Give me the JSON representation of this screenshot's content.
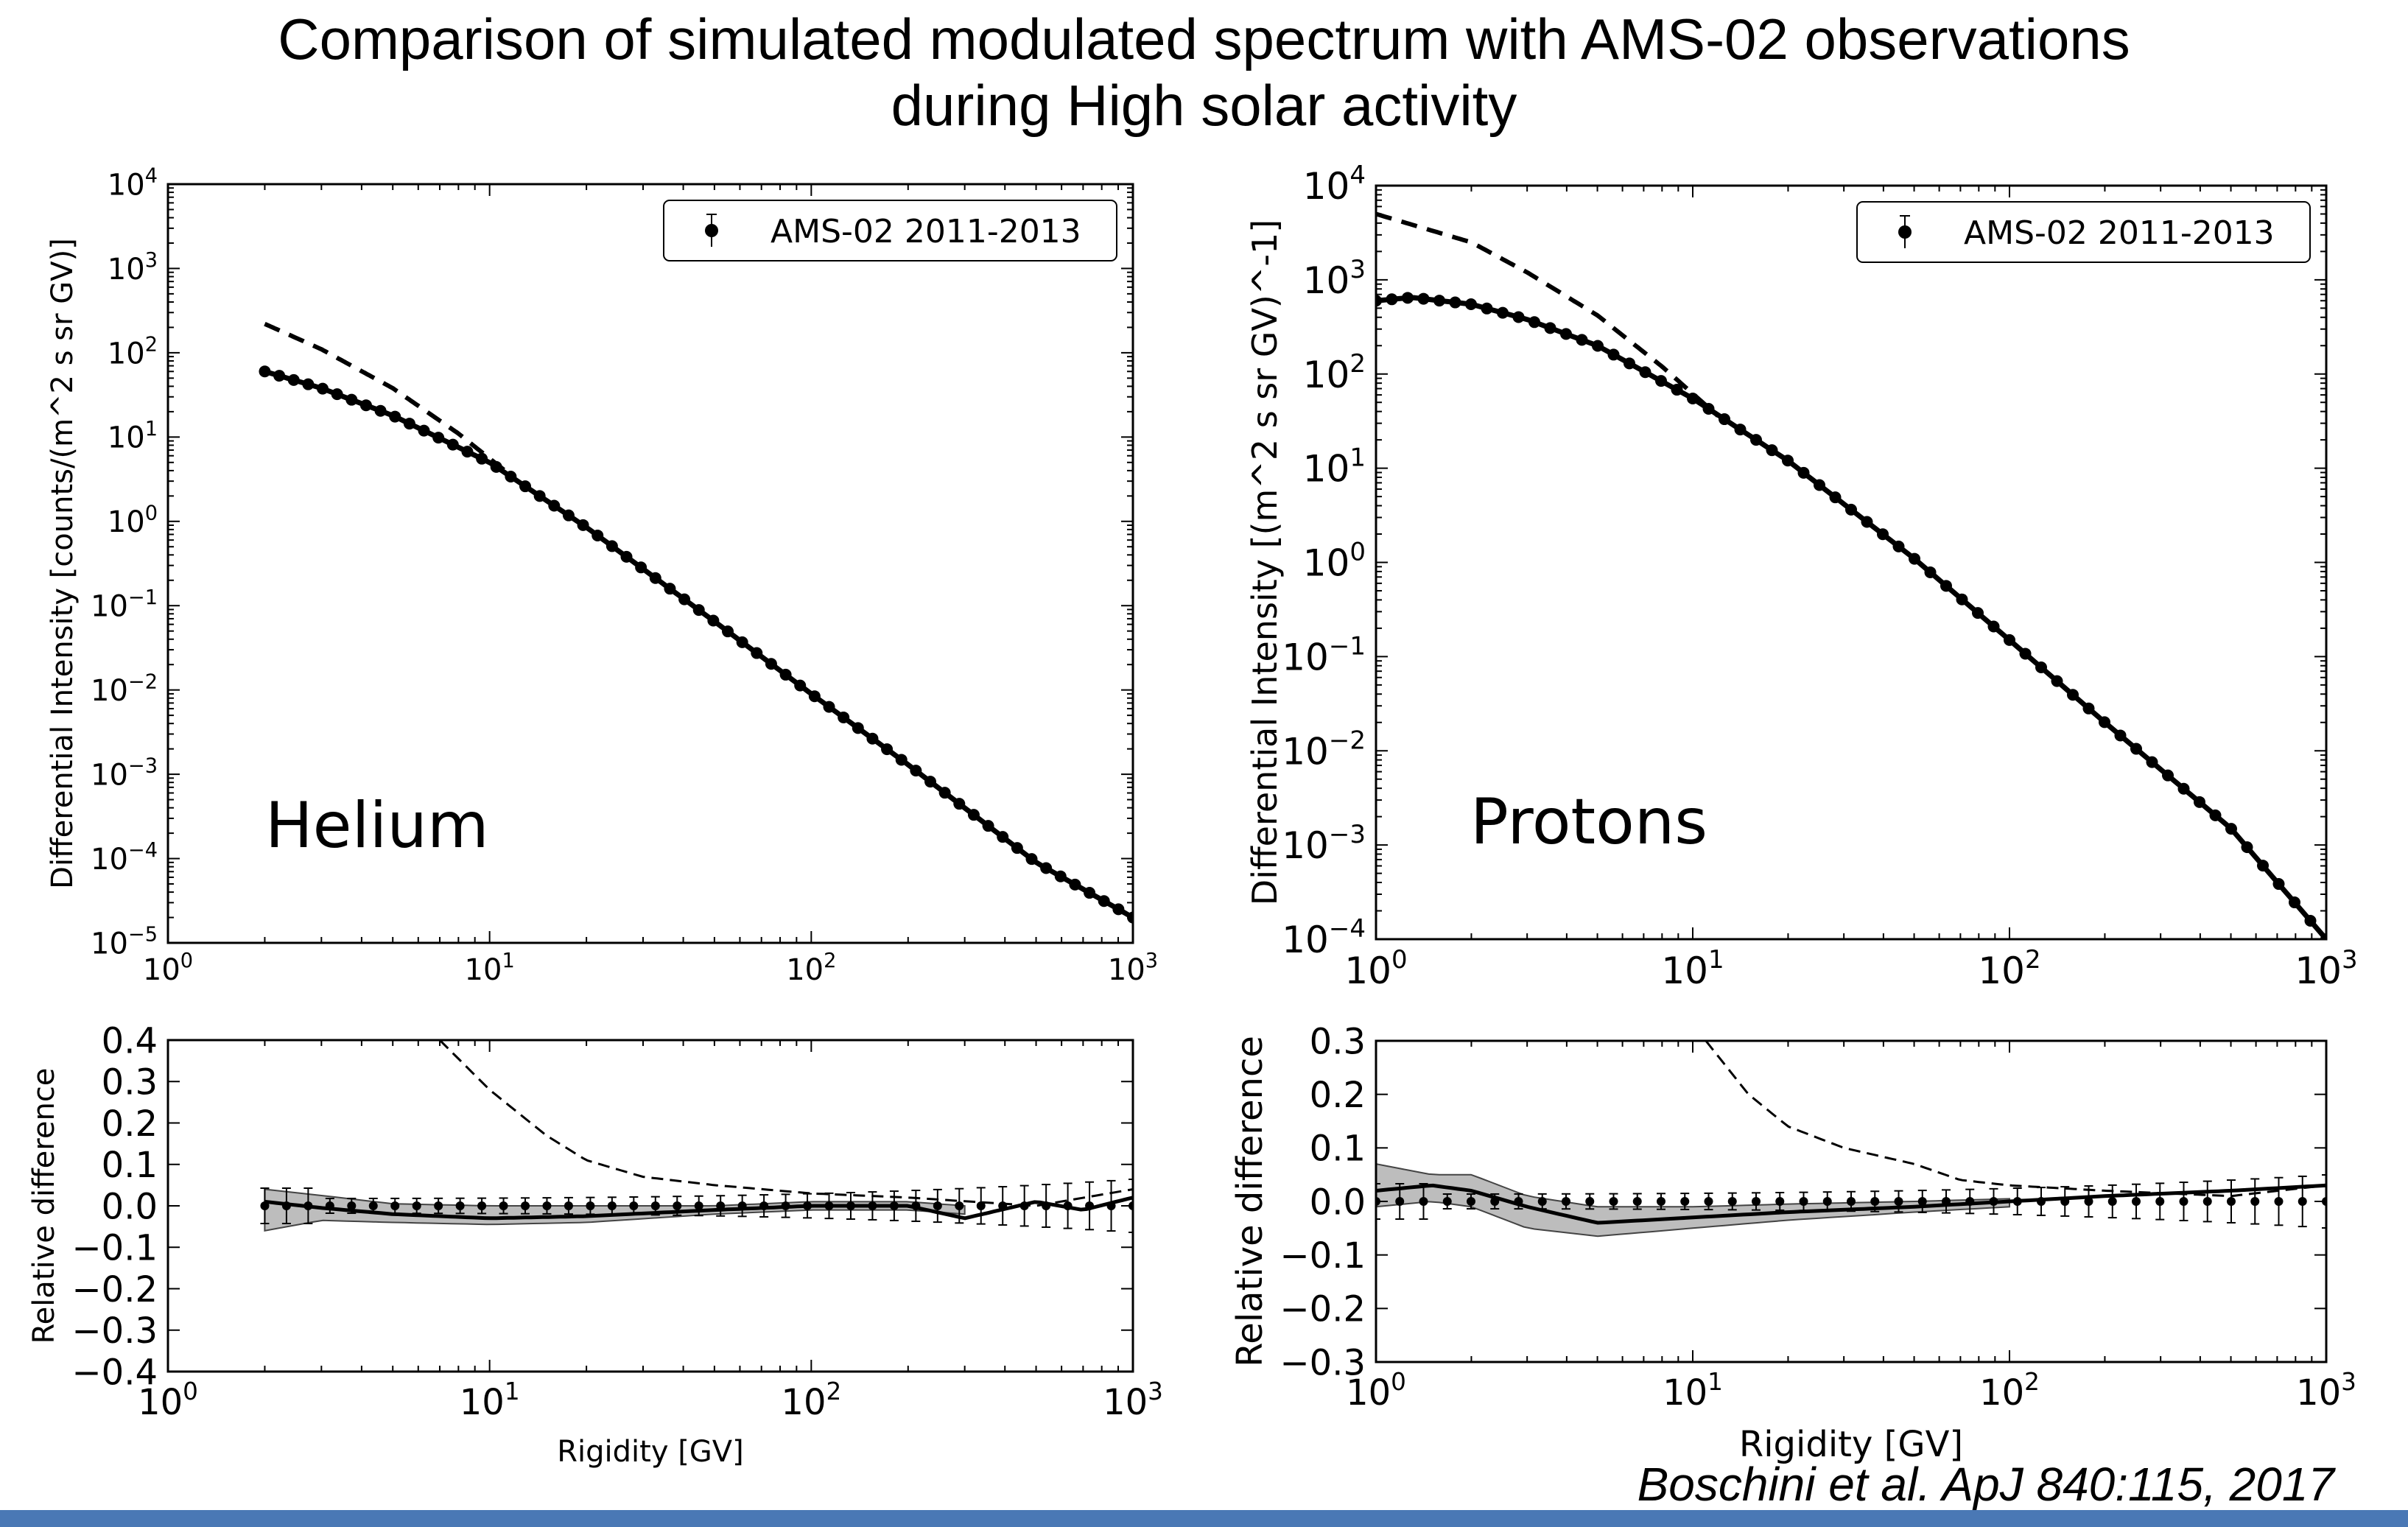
{
  "header": {
    "title_line1": "Comparison of simulated modulated spectrum with AMS-02 observations",
    "title_line2": "during High solar activity"
  },
  "footer": {
    "citation": "Boschini et al. ApJ 840:115, 2017"
  },
  "colors": {
    "footer_bar": "#4a78b5",
    "band": "#bdbdbd",
    "ink": "#000000"
  },
  "chart_data": [
    {
      "type": "line",
      "panel": "Helium spectrum",
      "annotation": "Helium",
      "xlabel": "",
      "ylabel": "Differential Intensity [counts/(m^2 s sr GV)]",
      "xscale": "log",
      "yscale": "log",
      "xlim": [
        1,
        1000
      ],
      "ylim": [
        1e-05,
        10000
      ],
      "xticks": [
        "10^0",
        "10^1",
        "10^2",
        "10^3"
      ],
      "yticks": [
        "10^-5",
        "10^-4",
        "10^-3",
        "10^-2",
        "10^-1",
        "10^0",
        "10^1",
        "10^2",
        "10^3",
        "10^4"
      ],
      "legend": {
        "label": "AMS-02 2011-2013",
        "placement": "top-right"
      },
      "series": [
        {
          "name": "AMS-02 2011-2013",
          "style": "markers-with-errorbars",
          "x": [
            2,
            3,
            5,
            10,
            20,
            50,
            100,
            200,
            500,
            1000
          ],
          "y": [
            60,
            38,
            18,
            5.0,
            0.85,
            0.065,
            0.009,
            0.0013,
            9e-05,
            2e-05
          ]
        },
        {
          "style": "solid",
          "x": [
            2,
            3,
            5,
            10,
            20,
            50,
            100,
            200,
            500,
            1000
          ],
          "y": [
            60,
            38,
            18,
            5.0,
            0.85,
            0.065,
            0.009,
            0.0013,
            9e-05,
            2e-05
          ]
        },
        {
          "style": "dashed",
          "x": [
            2,
            3,
            5,
            8,
            12
          ],
          "y": [
            220,
            110,
            38,
            11,
            3.2
          ]
        }
      ]
    },
    {
      "type": "line",
      "panel": "Proton spectrum",
      "annotation": "Protons",
      "xlabel": "",
      "ylabel": "Differential Intensity [(m^2 s sr GV)^-1]",
      "xscale": "log",
      "yscale": "log",
      "xlim": [
        1,
        1000
      ],
      "ylim": [
        0.0001,
        10000
      ],
      "xticks": [
        "10^0",
        "10^1",
        "10^2",
        "10^3"
      ],
      "yticks": [
        "10^-4",
        "10^-3",
        "10^-2",
        "10^-1",
        "10^0",
        "10^1",
        "10^2",
        "10^3",
        "10^4"
      ],
      "legend": {
        "label": "AMS-02 2011-2013",
        "placement": "top-right"
      },
      "series": [
        {
          "name": "AMS-02 2011-2013",
          "style": "markers-with-errorbars",
          "x": [
            1,
            1.3,
            2,
            3,
            5,
            10,
            20,
            50,
            100,
            200,
            500,
            1000
          ],
          "y": [
            600,
            650,
            550,
            380,
            200,
            55,
            12,
            1.1,
            0.15,
            0.02,
            0.0015,
            0.0001
          ]
        },
        {
          "style": "solid",
          "x": [
            1,
            1.3,
            2,
            3,
            5,
            10,
            20,
            50,
            100,
            200,
            500,
            1000
          ],
          "y": [
            600,
            650,
            550,
            380,
            200,
            55,
            12,
            1.1,
            0.15,
            0.02,
            0.0015,
            0.0001
          ]
        },
        {
          "style": "dashed",
          "x": [
            1,
            2,
            3,
            5,
            8,
            12
          ],
          "y": [
            5000,
            2500,
            1200,
            420,
            120,
            36
          ]
        }
      ]
    },
    {
      "type": "line",
      "panel": "Helium relative difference",
      "xlabel": "Rigidity [GV]",
      "ylabel": "Relative difference",
      "xscale": "log",
      "yscale": "linear",
      "xlim": [
        1,
        1000
      ],
      "ylim": [
        -0.4,
        0.4
      ],
      "xticks": [
        "10^0",
        "10^1",
        "10^2",
        "10^3"
      ],
      "yticks": [
        "0.4",
        "0.3",
        "0.2",
        "0.1",
        "0.0",
        "−0.1",
        "−0.2",
        "−0.3",
        "−0.4"
      ],
      "series": [
        {
          "style": "markers-with-errorbars",
          "x": [
            2,
            3,
            5,
            10,
            20,
            50,
            100,
            200,
            500,
            1000
          ],
          "y": [
            0,
            0,
            0,
            0,
            0,
            0,
            0,
            0,
            0,
            0
          ]
        },
        {
          "style": "solid",
          "x": [
            2,
            3,
            5,
            10,
            20,
            50,
            100,
            200,
            300,
            500,
            700,
            1000
          ],
          "y": [
            0.01,
            -0.005,
            -0.02,
            -0.03,
            -0.025,
            -0.01,
            0.0,
            0.0,
            -0.03,
            0.01,
            -0.01,
            0.02
          ]
        },
        {
          "style": "dashed",
          "x": [
            7,
            10,
            15,
            20,
            30,
            50,
            100,
            200,
            500,
            1000
          ],
          "y": [
            0.4,
            0.28,
            0.17,
            0.11,
            0.07,
            0.05,
            0.03,
            0.02,
            0.0,
            0.04
          ]
        },
        {
          "style": "shaded-band",
          "x": [
            2,
            3,
            5,
            10,
            20,
            50,
            100,
            200,
            300
          ],
          "upper": [
            0.04,
            0.025,
            0.005,
            0.0,
            0.0,
            0.0,
            0.01,
            0.01,
            0.0
          ],
          "lower": [
            -0.06,
            -0.035,
            -0.04,
            -0.045,
            -0.04,
            -0.02,
            -0.01,
            -0.01,
            -0.02
          ]
        }
      ]
    },
    {
      "type": "line",
      "panel": "Proton relative difference",
      "xlabel": "Rigidity [GV]",
      "ylabel": "Relative difference",
      "xscale": "log",
      "yscale": "linear",
      "xlim": [
        1,
        1000
      ],
      "ylim": [
        -0.3,
        0.3
      ],
      "xticks": [
        "10^0",
        "10^1",
        "10^2",
        "10^3"
      ],
      "yticks": [
        "0.3",
        "0.2",
        "0.1",
        "0.0",
        "−0.1",
        "−0.2",
        "−0.3"
      ],
      "series": [
        {
          "style": "markers-with-errorbars",
          "x": [
            1,
            1.3,
            2,
            3,
            5,
            10,
            20,
            50,
            100,
            200,
            500,
            1000
          ],
          "y": [
            0,
            0,
            0,
            0,
            0,
            0,
            0,
            0,
            0,
            0,
            0,
            0
          ]
        },
        {
          "style": "solid",
          "x": [
            1,
            1.5,
            2,
            3,
            5,
            10,
            20,
            50,
            100,
            200,
            500,
            1000
          ],
          "y": [
            0.02,
            0.03,
            0.02,
            -0.01,
            -0.04,
            -0.03,
            -0.02,
            -0.01,
            0.0,
            0.01,
            0.02,
            0.03
          ]
        },
        {
          "style": "dashed",
          "x": [
            11,
            15,
            20,
            30,
            50,
            70,
            100,
            200,
            500,
            1000
          ],
          "y": [
            0.3,
            0.2,
            0.14,
            0.1,
            0.07,
            0.04,
            0.03,
            0.02,
            0.01,
            0.03
          ]
        },
        {
          "style": "shaded-band",
          "x": [
            1,
            1.5,
            2,
            3,
            5,
            10,
            20,
            50,
            100
          ],
          "upper": [
            0.07,
            0.05,
            0.05,
            0.01,
            -0.01,
            -0.01,
            -0.005,
            0.0,
            0.005
          ],
          "lower": [
            -0.01,
            0.0,
            -0.01,
            -0.05,
            -0.065,
            -0.05,
            -0.035,
            -0.02,
            -0.01
          ]
        }
      ]
    }
  ]
}
